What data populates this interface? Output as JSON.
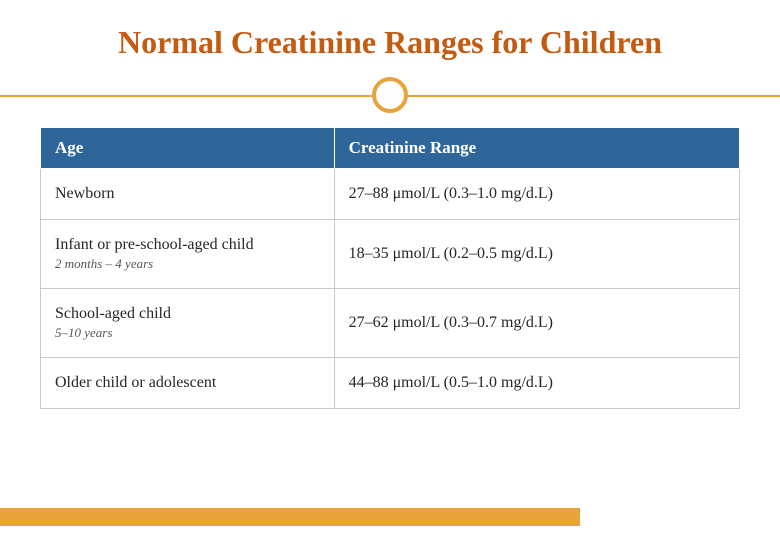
{
  "title": "Normal Creatinine Ranges for Children",
  "colors": {
    "title": "#c55a11",
    "accent": "#e8a33d",
    "header_bg": "#2f6699",
    "header_text": "#ffffff",
    "cell_border": "#c9c9c9",
    "cell_text": "#262626",
    "sub_text": "#555555",
    "footer_bar": "#e8a33d"
  },
  "table": {
    "columns": [
      "Age",
      "Creatinine Range"
    ],
    "rows": [
      {
        "age": "Newborn",
        "sub": "",
        "range": "27–88 μmol/L (0.3–1.0 mg/d.L)"
      },
      {
        "age": "Infant or pre-school-aged child",
        "sub": "2 months – 4 years",
        "range": "18–35 μmol/L (0.2–0.5 mg/d.L)"
      },
      {
        "age": "School-aged child",
        "sub": "5–10 years",
        "range": "27–62 μmol/L (0.3–0.7 mg/d.L)"
      },
      {
        "age": "Older child or adolescent",
        "sub": "",
        "range": "44–88 μmol/L (0.5–1.0 mg/d.L)"
      }
    ]
  }
}
